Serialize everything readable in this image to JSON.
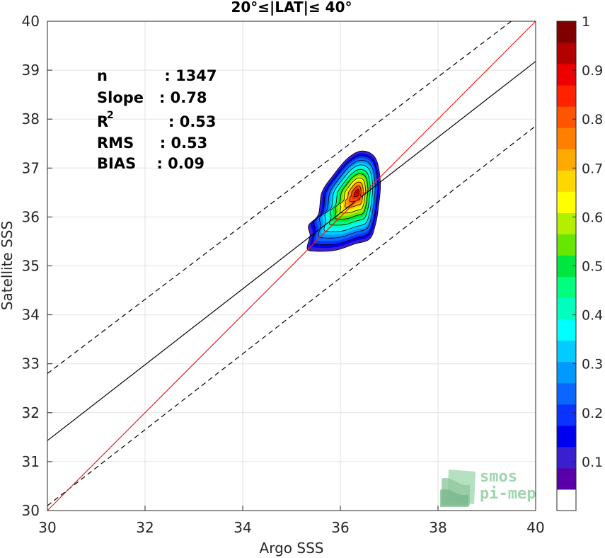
{
  "chart_data": {
    "type": "scatter",
    "title": "20°≤|LAT|≤ 40°",
    "xlabel": "Argo SSS",
    "ylabel": "Satellite SSS",
    "xlim": [
      30,
      40
    ],
    "ylim": [
      30,
      40
    ],
    "xticks": [
      "30",
      "32",
      "34",
      "36",
      "38",
      "40"
    ],
    "yticks": [
      "30",
      "31",
      "32",
      "33",
      "34",
      "35",
      "36",
      "37",
      "38",
      "39",
      "40"
    ],
    "grid": true,
    "stats": {
      "n": "n           : 1347",
      "slope": "Slope   : 0.78",
      "r2_label": "R",
      "r2_sup": "2",
      "r2_value": ": 0.53",
      "rms": "RMS     : 0.53",
      "bias": "BIAS    : 0.09"
    },
    "lines": {
      "identity": {
        "color": "#e8221c",
        "x": [
          30,
          40
        ],
        "y": [
          30,
          40
        ]
      },
      "fit": {
        "color": "#000000",
        "x": [
          30,
          40
        ],
        "y": [
          31.43,
          39.18
        ]
      },
      "upper_bound": {
        "color": "#000000",
        "dashed": true,
        "x": [
          30,
          39.5
        ],
        "y": [
          32.8,
          40
        ]
      },
      "lower_bound": {
        "color": "#000000",
        "dashed": true,
        "x": [
          30,
          40
        ],
        "y": [
          30.1,
          37.86
        ]
      }
    },
    "density": {
      "center": [
        36.35,
        36.5
      ],
      "levels": [
        0.05,
        0.15,
        0.25,
        0.35,
        0.45,
        0.55,
        0.65,
        0.75,
        0.85,
        0.95
      ],
      "outer_contour": [
        [
          35.32,
          35.35
        ],
        [
          35.38,
          35.62
        ],
        [
          35.35,
          35.83
        ],
        [
          35.55,
          36.05
        ],
        [
          35.62,
          36.5
        ],
        [
          35.85,
          36.85
        ],
        [
          36.15,
          37.2
        ],
        [
          36.45,
          37.35
        ],
        [
          36.72,
          37.2
        ],
        [
          36.82,
          36.7
        ],
        [
          36.78,
          36.2
        ],
        [
          36.72,
          35.85
        ],
        [
          36.6,
          35.55
        ],
        [
          36.3,
          35.45
        ],
        [
          35.9,
          35.32
        ],
        [
          35.5,
          35.3
        ]
      ]
    },
    "colorbar": {
      "ticks": [
        "0.1",
        "0.2",
        "0.3",
        "0.4",
        "0.5",
        "0.6",
        "0.7",
        "0.8",
        "0.9",
        "1"
      ],
      "range": [
        0,
        1
      ],
      "colors": [
        "#ffffff",
        "#5a00a8",
        "#3a1fcf",
        "#0000f0",
        "#0a33ff",
        "#0a66ff",
        "#0099ff",
        "#00ccff",
        "#00ffff",
        "#00ffbf",
        "#00ff7f",
        "#00e640",
        "#66e600",
        "#b3f000",
        "#ffff00",
        "#ffd700",
        "#ffaa00",
        "#ff7f00",
        "#ff5500",
        "#ff2200",
        "#ee0000",
        "#b30000",
        "#800000"
      ]
    },
    "watermark": {
      "line1": "smos",
      "line2": "pi-mep"
    }
  }
}
